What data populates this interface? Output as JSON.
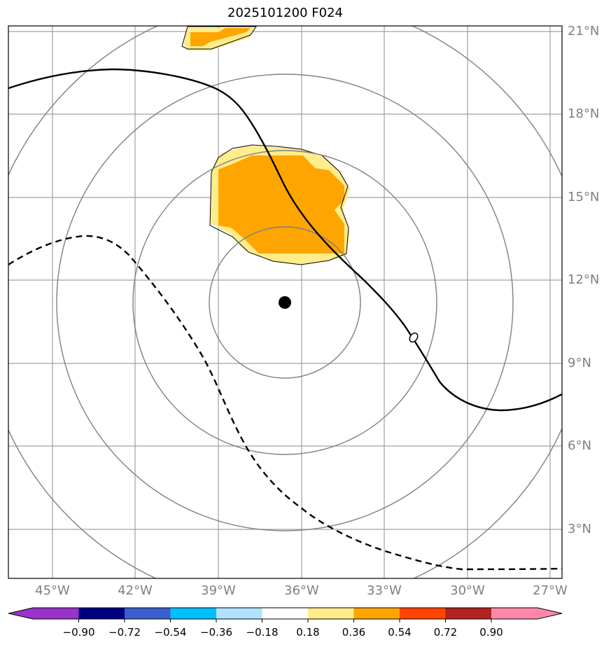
{
  "title": "2025101200 F024",
  "lat_labels": [
    "21°N",
    "18°N",
    "15°N",
    "12°N",
    "9°N",
    "6°N",
    "3°N"
  ],
  "lon_labels": [
    "45°W",
    "42°W",
    "39°W",
    "36°W",
    "33°W",
    "30°W",
    "27°W"
  ],
  "colorbar": {
    "tick_labels": [
      "−0.90",
      "−0.72",
      "−0.54",
      "−0.36",
      "−0.18",
      "0.18",
      "0.36",
      "0.54",
      "0.72",
      "0.90"
    ],
    "colors": [
      "#9933cc",
      "#000080",
      "#3a5fcd",
      "#00bfff",
      "#b0e2ff",
      "#ffffff",
      "#ffec8b",
      "#ffa500",
      "#ff4500",
      "#b22222",
      "#ff88aa"
    ]
  },
  "map": {
    "center_marker": "storm-center-dot",
    "line_color": "#808080",
    "fill_colors": {
      "light": "#ffec8b",
      "mid": "#ffa500"
    }
  }
}
